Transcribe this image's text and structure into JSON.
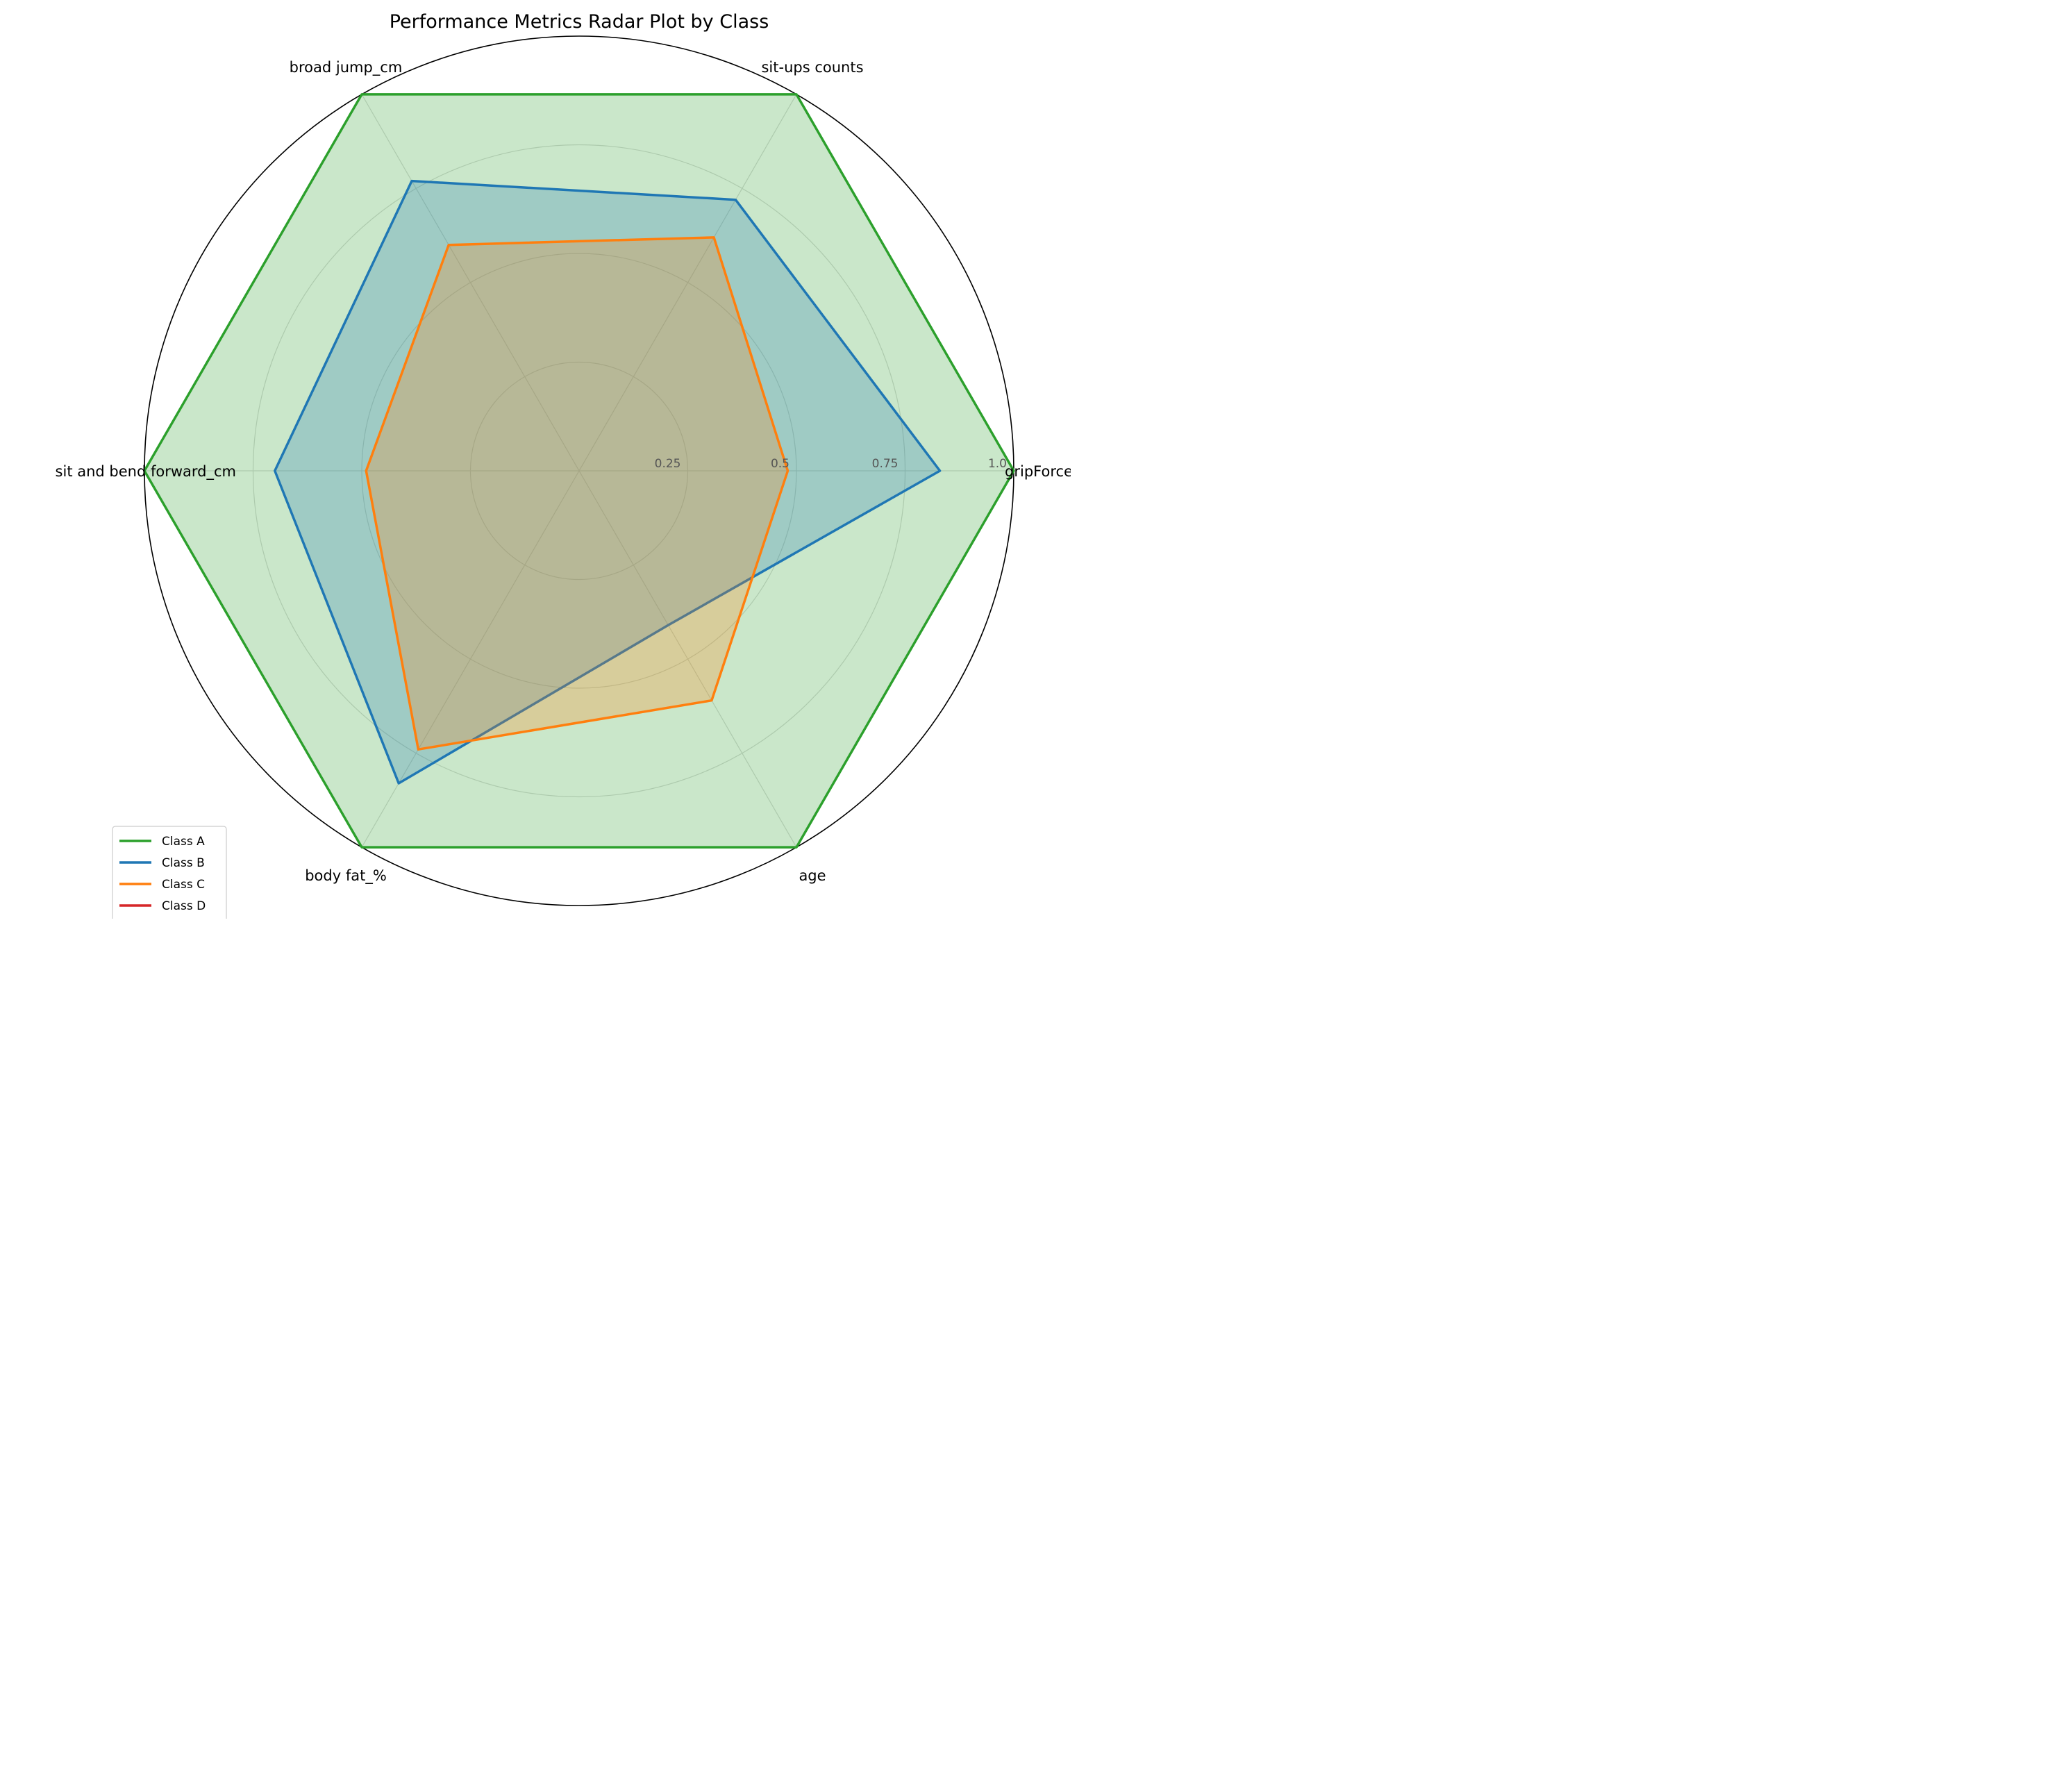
{
  "chart_data": {
    "type": "radar",
    "title": "Performance Metrics Radar Plot by Class",
    "categories": [
      "gripForce",
      "sit-ups counts",
      "broad jump_cm",
      "sit and bend forward_cm",
      "body fat_%",
      "age"
    ],
    "radial_ticks": [
      0.25,
      0.5,
      0.75,
      1.0
    ],
    "radial_tick_labels": [
      "0.25",
      "0.5",
      "0.75",
      "1.0"
    ],
    "rlim": [
      0,
      1
    ],
    "grid": true,
    "legend_position": "lower-left",
    "series": [
      {
        "name": "Class A",
        "color": "#2ca02c",
        "fill": true,
        "values": [
          1.0,
          1.0,
          1.0,
          1.0,
          1.0,
          1.0
        ]
      },
      {
        "name": "Class B",
        "color": "#1f77b4",
        "fill": true,
        "values": [
          0.83,
          0.72,
          0.77,
          0.7,
          0.83,
          0.41
        ]
      },
      {
        "name": "Class C",
        "color": "#ff7f0e",
        "fill": true,
        "values": [
          0.48,
          0.62,
          0.6,
          0.49,
          0.74,
          0.61
        ]
      },
      {
        "name": "Class D",
        "color": "#d62728",
        "fill": false,
        "values": [
          0,
          0,
          0,
          0,
          0,
          0
        ]
      }
    ]
  }
}
